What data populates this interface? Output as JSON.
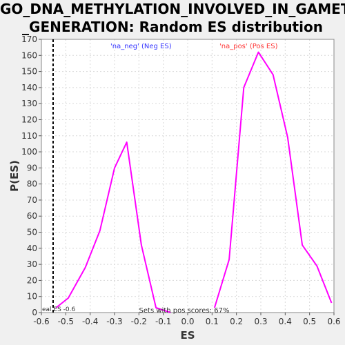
{
  "chart_data": {
    "type": "line",
    "title_lines": [
      "GO_DNA_METHYLATION_INVOLVED_IN_GAMETE",
      "_GENERATION: Random ES distribution"
    ],
    "xlabel": "ES",
    "ylabel": "P(ES)",
    "xlim": [
      -0.6,
      0.6
    ],
    "ylim": [
      0,
      170
    ],
    "xticks": [
      "-0.6",
      "-0.5",
      "-0.4",
      "-0.3",
      "-0.2",
      "-0.1",
      "0.0",
      "0.1",
      "0.2",
      "0.3",
      "0.4",
      "0.5",
      "0.6"
    ],
    "yticks": [
      "0",
      "10",
      "20",
      "30",
      "40",
      "50",
      "60",
      "70",
      "80",
      "90",
      "100",
      "110",
      "120",
      "130",
      "140",
      "150",
      "160",
      "170"
    ],
    "grid": true,
    "series": [
      {
        "name": "'na_neg' (Neg ES)",
        "color": "#ff00ff",
        "x": [
          -0.54,
          -0.49,
          -0.42,
          -0.36,
          -0.3,
          -0.25,
          -0.19,
          -0.13,
          -0.07
        ],
        "y": [
          3,
          9,
          28,
          51,
          90,
          106,
          42,
          3,
          0
        ]
      },
      {
        "name": "'na_pos' (Pos ES)",
        "color": "#ff00ff",
        "x": [
          0.11,
          0.17,
          0.23,
          0.29,
          0.35,
          0.41,
          0.47,
          0.53,
          0.59
        ],
        "y": [
          3,
          33,
          140,
          162,
          148,
          109,
          42,
          29,
          6
        ]
      }
    ],
    "legend": [
      {
        "label": "'na_neg' (Neg ES)",
        "color": "#3333ff"
      },
      {
        "label": "'na_pos' (Pos ES)",
        "color": "#ff3333"
      }
    ],
    "marker": {
      "x": -0.552,
      "label": "eal ES -0.6",
      "style": "dashed",
      "color": "#000000"
    },
    "annotation": "Sets with pos scores: 67%"
  }
}
